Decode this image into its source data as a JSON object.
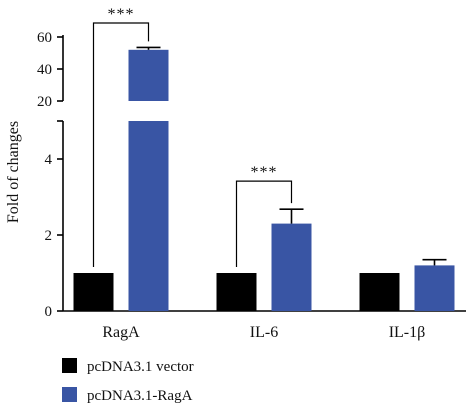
{
  "chart_data": {
    "type": "bar",
    "title": "",
    "ylabel": "Fold of changes",
    "xlabel": "",
    "categories": [
      "RagA",
      "IL-6",
      "IL-1β"
    ],
    "series": [
      {
        "name": "pcDNA3.1 vector",
        "color": "#000000",
        "values": [
          1,
          1,
          1
        ],
        "errors": [
          0,
          0,
          0
        ]
      },
      {
        "name": "pcDNA3.1-RagA",
        "color": "#3955a4",
        "values": [
          52,
          2.3,
          1.2
        ],
        "errors": [
          1.5,
          0.38,
          0.15
        ]
      }
    ],
    "y_axis": {
      "broken": true,
      "lower_segment": {
        "range": [
          0,
          5
        ],
        "ticks": [
          0,
          2,
          4
        ]
      },
      "upper_segment": {
        "range": [
          20,
          60
        ],
        "ticks": [
          20,
          40,
          60
        ]
      }
    },
    "significance": [
      {
        "category": "RagA",
        "label": "***"
      },
      {
        "category": "IL-6",
        "label": "***"
      }
    ],
    "legend_position": "bottom-left",
    "grid": false
  }
}
